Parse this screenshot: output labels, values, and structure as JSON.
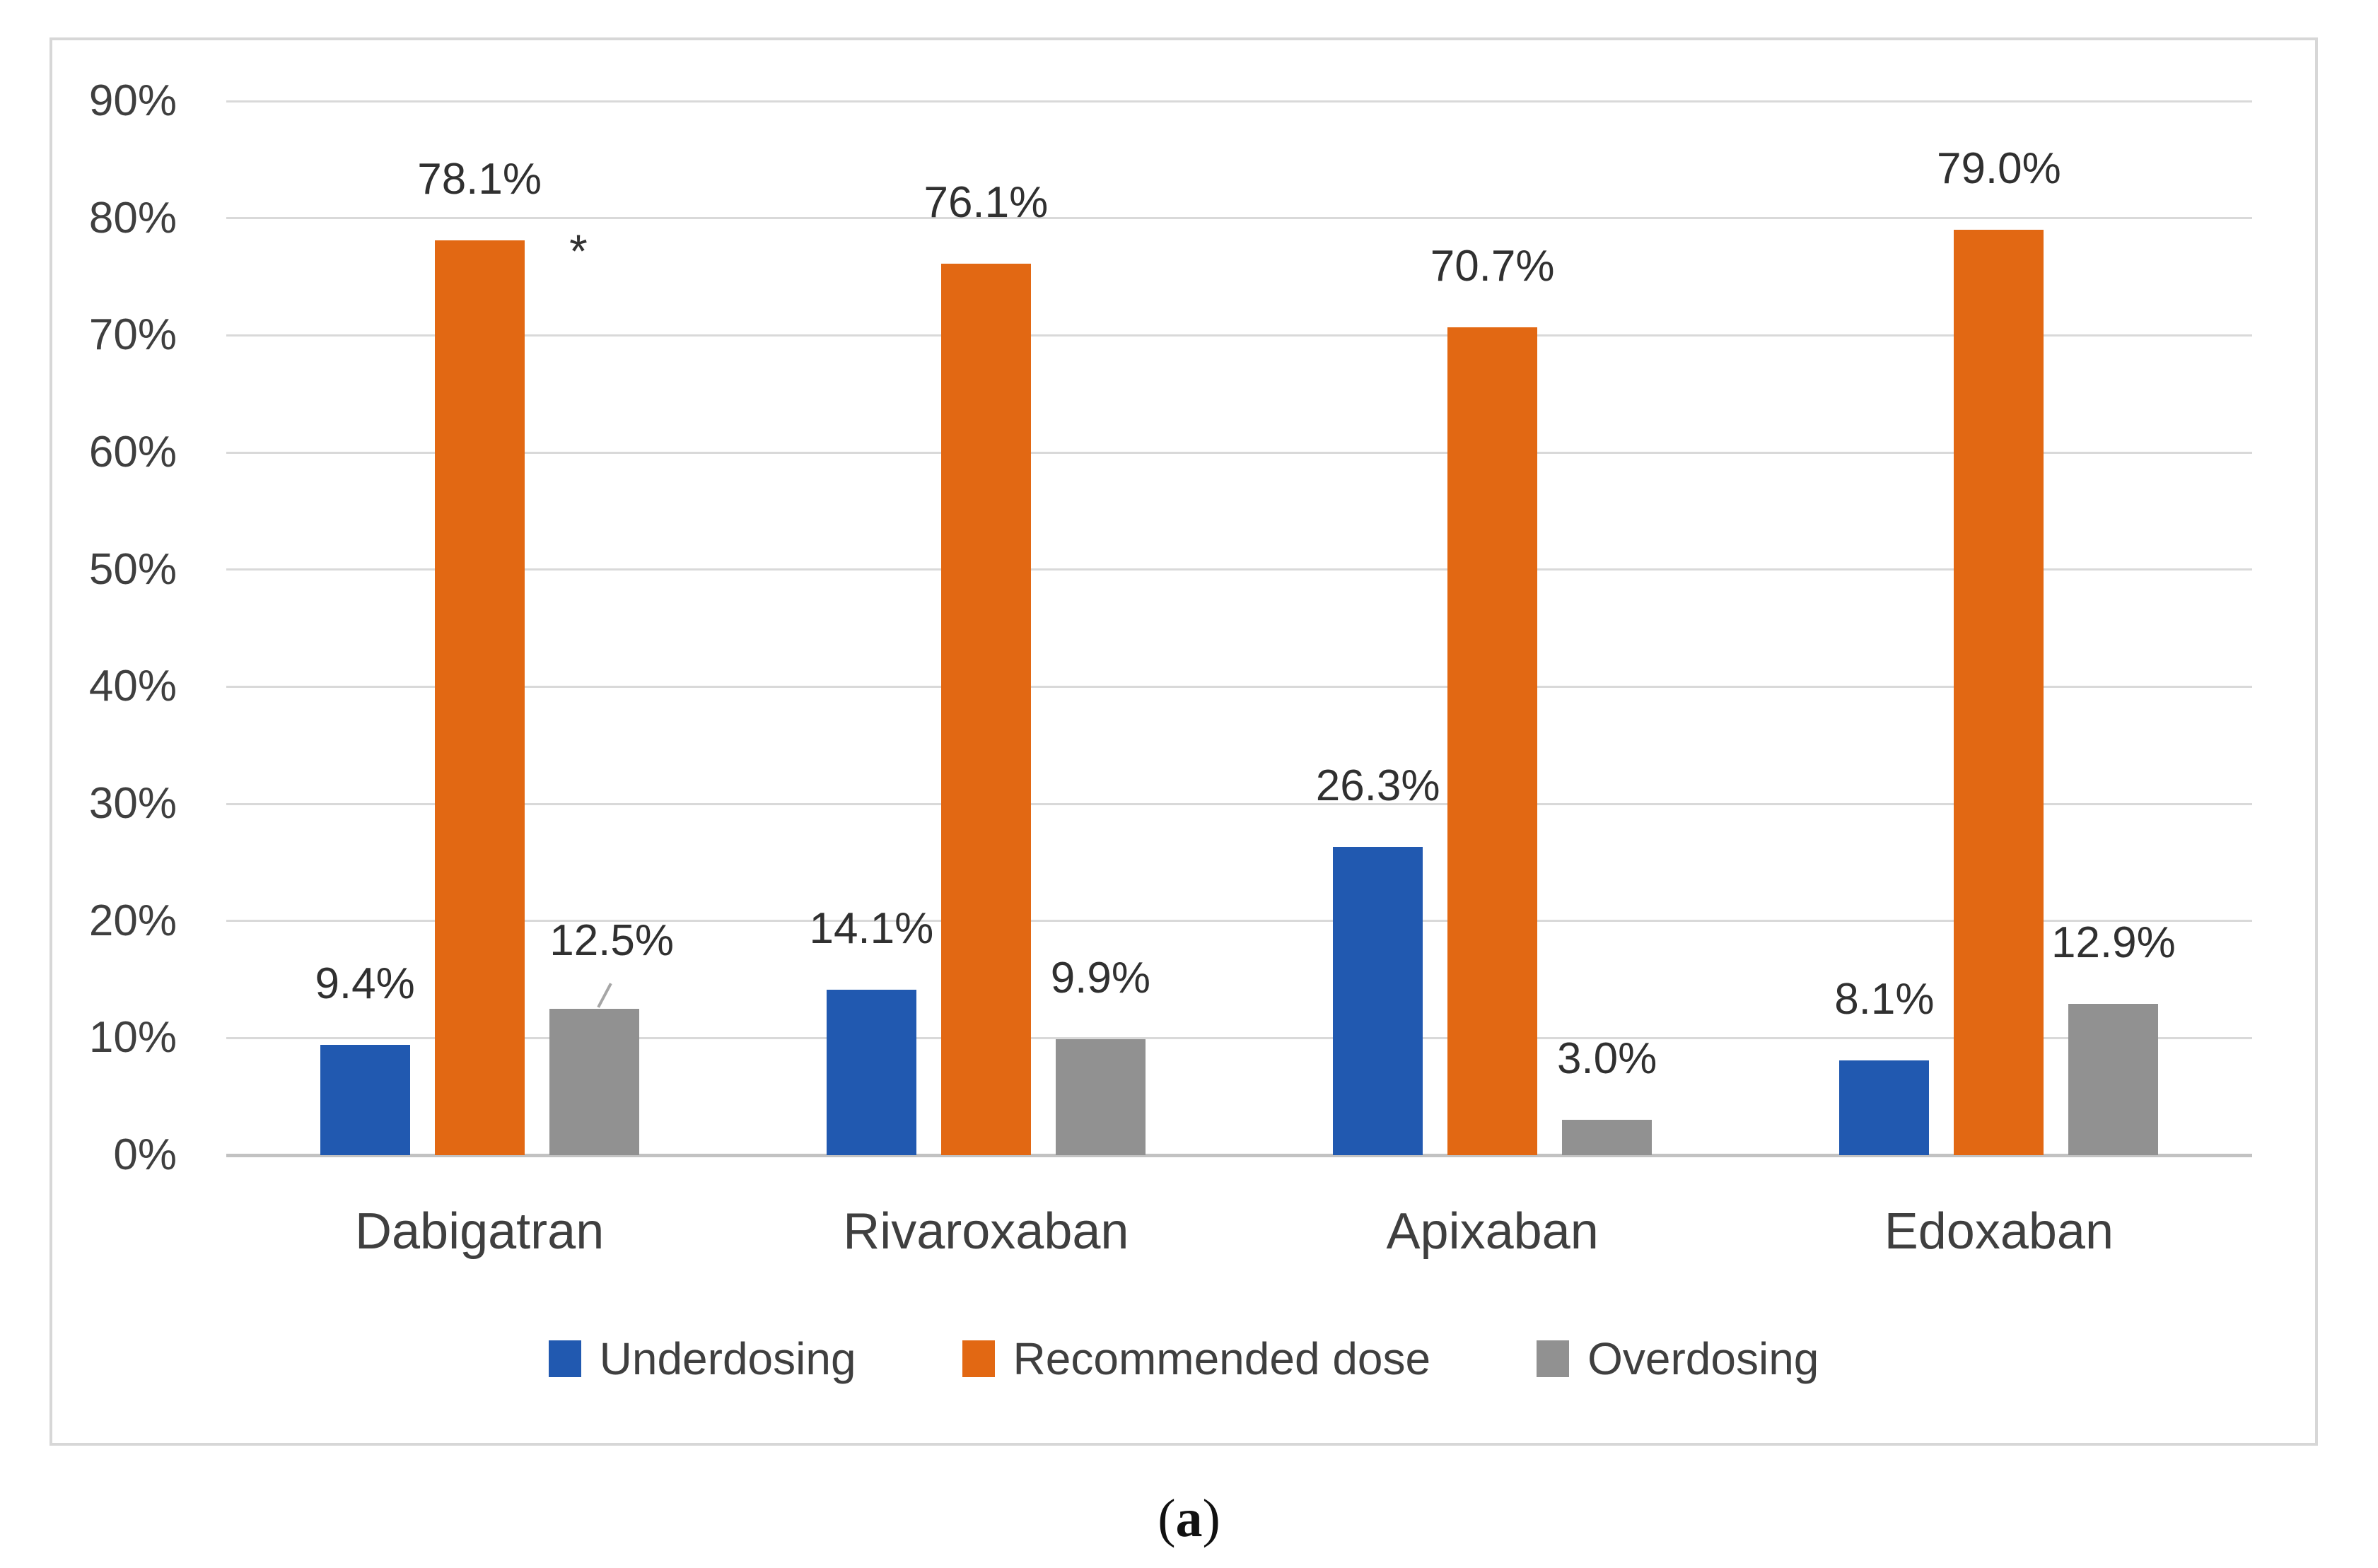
{
  "figure": {
    "caption_prefix": "(",
    "caption_letter": "a",
    "caption_suffix": ")"
  },
  "chart_data": {
    "type": "bar",
    "title": "",
    "categories": [
      "Dabigatran",
      "Rivaroxaban",
      "Apixaban",
      "Edoxaban"
    ],
    "series": [
      {
        "name": "Underdosing",
        "color": "#2159B0",
        "values": [
          9.4,
          14.1,
          26.3,
          8.1
        ],
        "labels": [
          "9.4%",
          "14.1%",
          "26.3%",
          "8.1%"
        ]
      },
      {
        "name": "Recommended dose",
        "color": "#E26813",
        "values": [
          78.1,
          76.1,
          70.7,
          79.0
        ],
        "labels": [
          "78.1%",
          "76.1%",
          "70.7%",
          "79.0%"
        ]
      },
      {
        "name": "Overdosing",
        "color": "#919191",
        "values": [
          12.5,
          9.9,
          3.0,
          12.9
        ],
        "labels": [
          "12.5%",
          "9.9%",
          "3.0%",
          "12.9%"
        ]
      }
    ],
    "xlabel": "",
    "ylabel": "",
    "ylim": [
      0,
      90
    ],
    "ytick_step": 10,
    "yticks": [
      "0%",
      "10%",
      "20%",
      "30%",
      "40%",
      "50%",
      "60%",
      "70%",
      "80%",
      "90%"
    ],
    "grid": true,
    "legend_position": "bottom",
    "annotations": {
      "significance_marker": "*"
    },
    "style": {
      "grid_color": "#D9D9D9",
      "axis_line_color": "#C2C2C2",
      "figure_border_color": "#D7D7D7",
      "text_color": "#3F3F3F"
    }
  }
}
